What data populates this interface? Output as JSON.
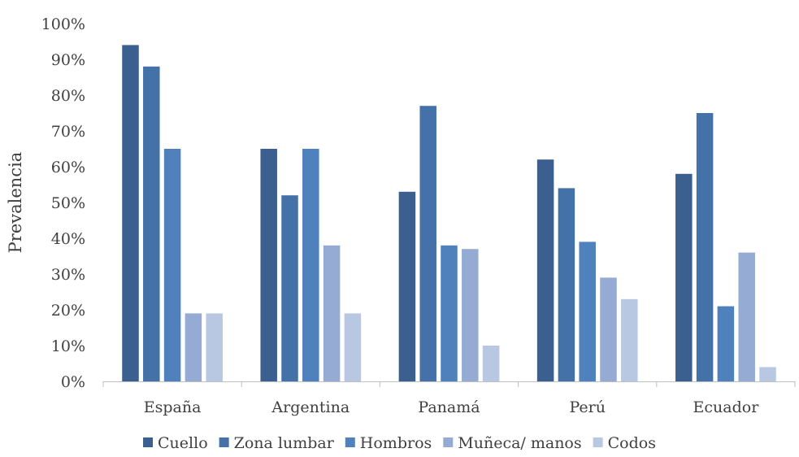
{
  "chart_data": {
    "type": "bar",
    "title": "",
    "xlabel": "",
    "ylabel": "Prevalencia",
    "ylim": [
      0,
      100
    ],
    "y_ticks": [
      "0%",
      "10%",
      "20%",
      "30%",
      "40%",
      "50%",
      "60%",
      "70%",
      "80%",
      "90%",
      "100%"
    ],
    "categories": [
      "España",
      "Argentina",
      "Panamá",
      "Perú",
      "Ecuador"
    ],
    "series": [
      {
        "name": "Cuello",
        "color": "#3B5F8E",
        "values": [
          94,
          65,
          53,
          62,
          58
        ]
      },
      {
        "name": "Zona lumbar",
        "color": "#4472A8",
        "values": [
          88,
          52,
          77,
          54,
          75
        ]
      },
      {
        "name": "Hombros",
        "color": "#4F81BD",
        "values": [
          65,
          65,
          38,
          39,
          21
        ]
      },
      {
        "name": "Muñeca/ manos",
        "color": "#95ABD3",
        "values": [
          19,
          38,
          37,
          29,
          36
        ]
      },
      {
        "name": "Codos",
        "color": "#B9C8E2",
        "values": [
          19,
          19,
          10,
          23,
          4
        ]
      }
    ],
    "grid": false,
    "legend_position": "bottom"
  }
}
